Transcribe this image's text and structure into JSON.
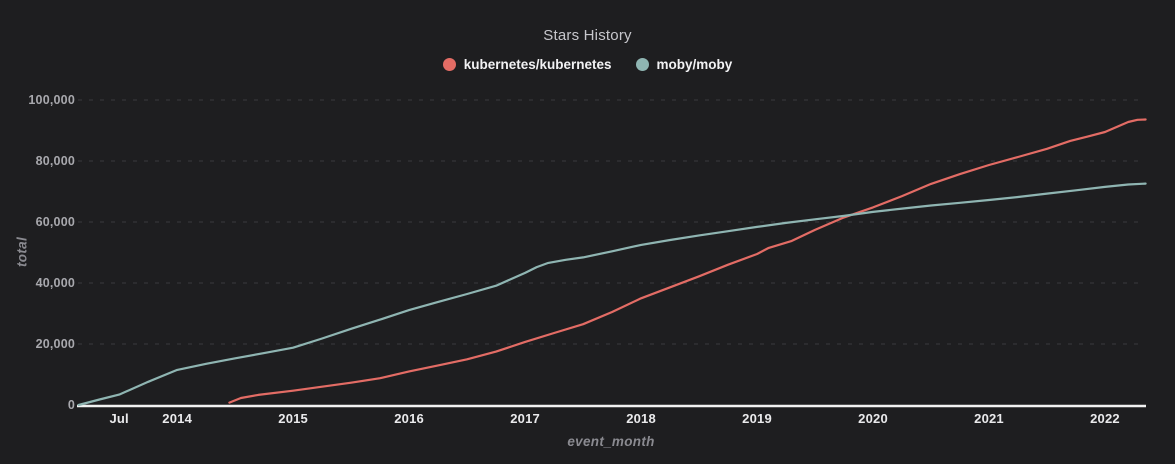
{
  "header": {
    "title": "Stars History"
  },
  "colors": {
    "background": "#1e1e20",
    "grid": "#3a3a3e",
    "axis_line": "#f2f2f2",
    "series_kubernetes": "#e36c65",
    "series_moby": "#8fb5b2"
  },
  "chart_data": {
    "type": "line",
    "title": "Stars History",
    "xlabel": "event_month",
    "ylabel": "total",
    "xlim": [
      2013.145,
      2022.345
    ],
    "ylim": [
      0,
      100000
    ],
    "grid": "horizontal-dashed",
    "legend_position": "top-center",
    "x_ticks": [
      {
        "value": 2013.5,
        "label": "Jul"
      },
      {
        "value": 2014,
        "label": "2014"
      },
      {
        "value": 2015,
        "label": "2015"
      },
      {
        "value": 2016,
        "label": "2016"
      },
      {
        "value": 2017,
        "label": "2017"
      },
      {
        "value": 2018,
        "label": "2018"
      },
      {
        "value": 2019,
        "label": "2019"
      },
      {
        "value": 2020,
        "label": "2020"
      },
      {
        "value": 2021,
        "label": "2021"
      },
      {
        "value": 2022,
        "label": "2022"
      }
    ],
    "y_ticks": [
      {
        "value": 0,
        "label": "0"
      },
      {
        "value": 20000,
        "label": "20,000"
      },
      {
        "value": 40000,
        "label": "40,000"
      },
      {
        "value": 60000,
        "label": "60,000"
      },
      {
        "value": 80000,
        "label": "80,000"
      },
      {
        "value": 100000,
        "label": "100,000"
      }
    ],
    "series": [
      {
        "name": "kubernetes/kubernetes",
        "color": "#e36c65",
        "points": [
          [
            2014.45,
            800
          ],
          [
            2014.55,
            2300
          ],
          [
            2014.7,
            3300
          ],
          [
            2015.0,
            4700
          ],
          [
            2015.25,
            6000
          ],
          [
            2015.5,
            7300
          ],
          [
            2015.75,
            8800
          ],
          [
            2016.0,
            11000
          ],
          [
            2016.25,
            13000
          ],
          [
            2016.5,
            15000
          ],
          [
            2016.75,
            17500
          ],
          [
            2017.0,
            20700
          ],
          [
            2017.25,
            23600
          ],
          [
            2017.5,
            26500
          ],
          [
            2017.75,
            30500
          ],
          [
            2018.0,
            35000
          ],
          [
            2018.25,
            38600
          ],
          [
            2018.5,
            42200
          ],
          [
            2018.75,
            46000
          ],
          [
            2019.0,
            49500
          ],
          [
            2019.1,
            51500
          ],
          [
            2019.3,
            53800
          ],
          [
            2019.5,
            57400
          ],
          [
            2019.75,
            61500
          ],
          [
            2020.0,
            64800
          ],
          [
            2020.25,
            68500
          ],
          [
            2020.5,
            72500
          ],
          [
            2020.75,
            75700
          ],
          [
            2021.0,
            78700
          ],
          [
            2021.25,
            81300
          ],
          [
            2021.5,
            84000
          ],
          [
            2021.7,
            86600
          ],
          [
            2021.85,
            88000
          ],
          [
            2022.0,
            89500
          ],
          [
            2022.2,
            92800
          ],
          [
            2022.28,
            93500
          ],
          [
            2022.35,
            93600
          ]
        ]
      },
      {
        "name": "moby/moby",
        "color": "#8fb5b2",
        "points": [
          [
            2013.15,
            0
          ],
          [
            2013.33,
            1800
          ],
          [
            2013.5,
            3400
          ],
          [
            2013.75,
            7600
          ],
          [
            2014.0,
            11500
          ],
          [
            2014.25,
            13500
          ],
          [
            2014.5,
            15300
          ],
          [
            2014.75,
            17000
          ],
          [
            2015.0,
            18800
          ],
          [
            2015.25,
            21800
          ],
          [
            2015.5,
            25000
          ],
          [
            2015.75,
            28000
          ],
          [
            2016.0,
            31100
          ],
          [
            2016.25,
            33800
          ],
          [
            2016.5,
            36400
          ],
          [
            2016.75,
            39100
          ],
          [
            2017.0,
            43300
          ],
          [
            2017.1,
            45200
          ],
          [
            2017.2,
            46600
          ],
          [
            2017.35,
            47600
          ],
          [
            2017.5,
            48400
          ],
          [
            2017.75,
            50400
          ],
          [
            2018.0,
            52500
          ],
          [
            2018.25,
            54100
          ],
          [
            2018.5,
            55600
          ],
          [
            2018.75,
            57000
          ],
          [
            2019.0,
            58400
          ],
          [
            2019.25,
            59700
          ],
          [
            2019.5,
            60900
          ],
          [
            2019.75,
            62000
          ],
          [
            2020.0,
            63300
          ],
          [
            2020.25,
            64400
          ],
          [
            2020.5,
            65400
          ],
          [
            2020.75,
            66300
          ],
          [
            2021.0,
            67200
          ],
          [
            2021.25,
            68200
          ],
          [
            2021.5,
            69300
          ],
          [
            2021.75,
            70400
          ],
          [
            2022.0,
            71500
          ],
          [
            2022.2,
            72300
          ],
          [
            2022.35,
            72600
          ]
        ]
      }
    ]
  }
}
